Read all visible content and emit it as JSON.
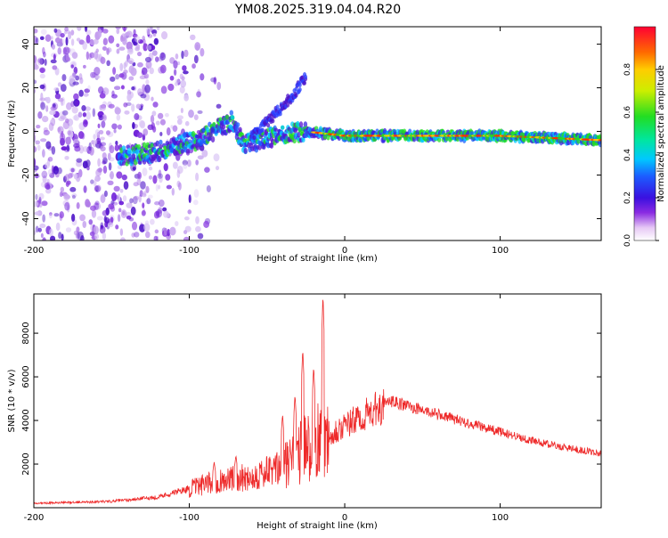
{
  "title": "YM08.2025.319.04.04.R20",
  "chart_data": [
    {
      "type": "heatmap",
      "name": "spectrogram",
      "xlabel": "Height of straight line (km)",
      "ylabel": "Frequency (Hz)",
      "xlim": [
        -200,
        165
      ],
      "ylim": [
        -50,
        48
      ],
      "xticks": [
        -200,
        -100,
        0,
        100
      ],
      "yticks": [
        -40,
        -20,
        0,
        20,
        40
      ],
      "xtick_labels": [
        "-200",
        "-100",
        "0",
        "100"
      ],
      "ytick_labels": [
        "-40",
        "-20",
        "0",
        "20",
        "40"
      ],
      "colorbar": {
        "label": "Normalized spectral amplitude",
        "range": [
          0,
          1
        ],
        "ticks": [
          0.0,
          0.2,
          0.4,
          0.6,
          0.8
        ],
        "tick_labels": [
          "0.0",
          "0.2",
          "0.4",
          "0.6",
          "0.8"
        ]
      },
      "features": {
        "noise_region_x": [
          -200,
          -100
        ],
        "ridge": [
          {
            "x": -140,
            "f": -11
          },
          {
            "x": -125,
            "f": -10
          },
          {
            "x": -110,
            "f": -7
          },
          {
            "x": -95,
            "f": -4
          },
          {
            "x": -80,
            "f": 2
          },
          {
            "x": -72,
            "f": 5
          },
          {
            "x": -65,
            "f": -6
          },
          {
            "x": -55,
            "f": -4
          },
          {
            "x": -40,
            "f": -1
          },
          {
            "x": -25,
            "f": 0
          },
          {
            "x": 0,
            "f": -2
          },
          {
            "x": 40,
            "f": -2
          },
          {
            "x": 100,
            "f": -2
          },
          {
            "x": 165,
            "f": -4
          }
        ],
        "branch": [
          {
            "x": -60,
            "f": -2
          },
          {
            "x": -45,
            "f": 8
          },
          {
            "x": -35,
            "f": 15
          },
          {
            "x": -25,
            "f": 25
          }
        ]
      }
    },
    {
      "type": "line",
      "name": "snr",
      "xlabel": "Height of straight line (km)",
      "ylabel": "SNR (10 * v/v)",
      "xlim": [
        -200,
        165
      ],
      "ylim": [
        0,
        9800
      ],
      "xticks": [
        -200,
        -100,
        0,
        100
      ],
      "yticks": [
        2000,
        4000,
        6000,
        8000
      ],
      "xtick_labels": [
        "-200",
        "-100",
        "0",
        "100"
      ],
      "ytick_labels": [
        "2000",
        "4000",
        "6000",
        "8000"
      ],
      "color": "#ee2a2a",
      "envelope": {
        "x": [
          -200,
          -150,
          -120,
          -100,
          -80,
          -60,
          -40,
          -30,
          -20,
          -10,
          0,
          10,
          20,
          30,
          40,
          60,
          80,
          100,
          120,
          140,
          165
        ],
        "y": [
          200,
          300,
          500,
          900,
          1300,
          1500,
          1900,
          2600,
          3200,
          3500,
          3800,
          4200,
          4600,
          4900,
          4700,
          4300,
          3900,
          3500,
          3100,
          2800,
          2500
        ]
      },
      "peaks": [
        {
          "x": -14,
          "y": 9800
        },
        {
          "x": -27,
          "y": 7300
        },
        {
          "x": -32,
          "y": 5200
        },
        {
          "x": -20,
          "y": 6500
        },
        {
          "x": -40,
          "y": 4300
        },
        {
          "x": -70,
          "y": 2400
        },
        {
          "x": -84,
          "y": 2100
        }
      ]
    }
  ]
}
